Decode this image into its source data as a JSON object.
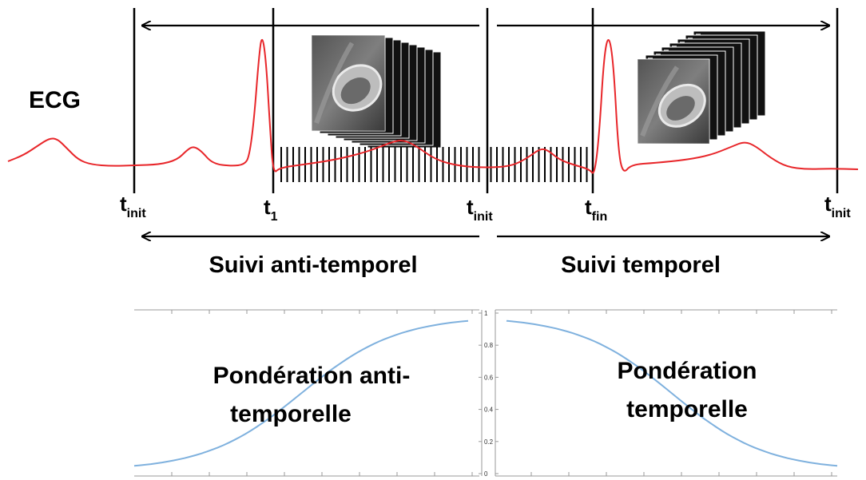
{
  "ecg_label": "ECG",
  "time_markers": {
    "t": "t",
    "init": "init",
    "one": "1",
    "fin": "fin"
  },
  "tracking": {
    "anti_temporal": "Suivi anti-temporel",
    "temporal": "Suivi temporel"
  },
  "weighting": {
    "anti_temporal_line1": "Pondération anti-",
    "anti_temporal_line2": "temporelle",
    "temporal_line1": "Pondération",
    "temporal_line2": "temporelle"
  },
  "weight_axis_ticks": [
    "0",
    "0.2",
    "0.4",
    "0.6",
    "0.8",
    "1"
  ],
  "colors": {
    "ecg": "#e8262a",
    "weight_curve": "#7fb1de",
    "frame_line": "#000000",
    "axis": "#999999"
  }
}
